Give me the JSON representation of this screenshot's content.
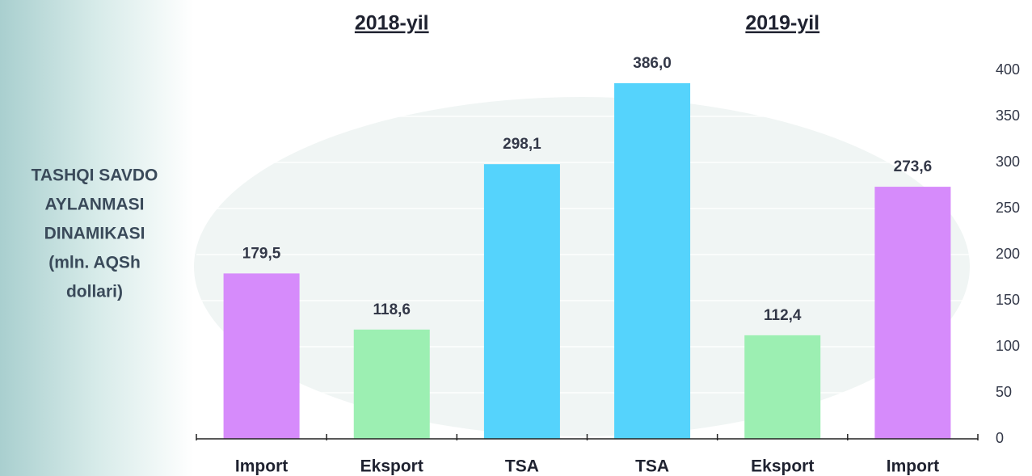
{
  "chart_data": {
    "type": "bar",
    "group_labels": [
      "2018-yil",
      "2019-yil"
    ],
    "side_label": [
      "TASHQI SAVDO",
      "AYLANMASI",
      "DINAMIKASI",
      "(mln. AQSh",
      "dollari)"
    ],
    "categories": [
      "Import",
      "Eksport",
      "TSA",
      "TSA",
      "Eksport",
      "Import"
    ],
    "values": [
      179.5,
      118.6,
      298.1,
      386.0,
      112.4,
      273.6
    ],
    "value_labels": [
      "179,5",
      "118,6",
      "298,1",
      "386,0",
      "112,4",
      "273,6"
    ],
    "colors": [
      "#d68bfb",
      "#9cefb2",
      "#55d3fc",
      "#55d3fc",
      "#9cefb2",
      "#d68bfb"
    ],
    "ylim": [
      0,
      400
    ],
    "yticks": [
      0,
      50,
      100,
      150,
      200,
      250,
      300,
      350,
      400
    ],
    "grid": true
  }
}
